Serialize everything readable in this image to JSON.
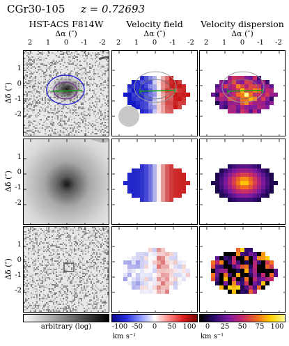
{
  "header": {
    "object_name": "CGr30-105",
    "redshift": "z = 0.72693"
  },
  "columns": [
    {
      "title": "HST-ACS F814W",
      "xlabel": "Δα (″)"
    },
    {
      "title": "Velocity field",
      "xlabel": "Δα (″)"
    },
    {
      "title": "Velocity dispersion",
      "xlabel": "Δα (″)"
    }
  ],
  "x_ticks": [
    "2",
    "1",
    "0",
    "-1",
    "-2"
  ],
  "y_ticks": [
    "1",
    "0",
    "-1",
    "-2"
  ],
  "ylabel": "Δδ (″)",
  "colorbars": [
    {
      "name": "intensity",
      "label": "arbitrary (log)",
      "ticks": [],
      "unit": ""
    },
    {
      "name": "velocity",
      "label": "",
      "ticks": [
        "-100",
        "-50",
        "0",
        "50",
        "100"
      ],
      "unit": "km s⁻¹"
    },
    {
      "name": "dispersion",
      "label": "",
      "ticks": [
        "0",
        "25",
        "50",
        "75",
        "100"
      ],
      "unit": "km s⁻¹"
    }
  ],
  "colors": {
    "contour_outer": "#2a2ad0",
    "contour_inner": "#7a2a9a",
    "kinematic_axis": "#1aa01a",
    "psf_disk": "#c8c8c8"
  }
}
